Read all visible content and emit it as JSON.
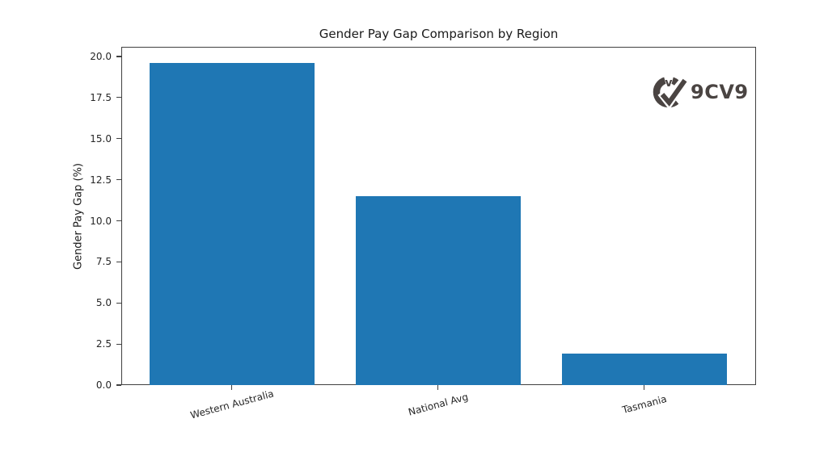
{
  "figure": {
    "background": "#ffffff"
  },
  "chart_data": {
    "type": "bar",
    "title": "Gender Pay Gap Comparison by Region",
    "categories": [
      "Western Australia",
      "National Avg",
      "Tasmania"
    ],
    "values": [
      19.6,
      11.5,
      1.9
    ],
    "xlabel": "",
    "ylabel": "Gender Pay Gap (%)",
    "ylim": [
      0,
      20.59
    ],
    "yticks": [
      0.0,
      2.5,
      5.0,
      7.5,
      10.0,
      12.5,
      15.0,
      17.5,
      20.0
    ],
    "ytick_labels": [
      "0.0",
      "2.5",
      "5.0",
      "7.5",
      "10.0",
      "12.5",
      "15.0",
      "17.5",
      "20.0"
    ],
    "xtick_rotation_deg": 15,
    "grid": false,
    "legend": null,
    "bar_color": "#1f77b4",
    "spine_color": "#404040",
    "text_color": "#262626"
  },
  "watermark": {
    "text": "9CV9",
    "icon_letter": "v",
    "color": "#4a4442"
  }
}
